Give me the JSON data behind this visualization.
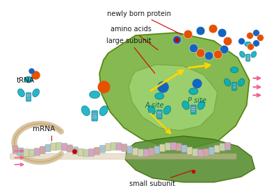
{
  "title": "",
  "background_color": "#ffffff",
  "labels": {
    "newly_born_protein": "newly born protein",
    "amino_acids": "amino acids",
    "large_subunit": "large subunit",
    "trna": "tRNA",
    "mrna": "mRNA",
    "small_subunit": "small subunit",
    "a_site": "A site",
    "p_site": "P site"
  },
  "colors": {
    "large_subunit_green": "#7cb342",
    "small_subunit_green": "#558b2f",
    "teal_blue": "#00acc1",
    "light_blue": "#80deea",
    "orange_ball": "#e65100",
    "blue_ball": "#1565c0",
    "yellow_arrow": "#ffd600",
    "mrna_tan": "#d7c4a0",
    "red_arrow": "#e53935",
    "pink_arrow": "#f48fb1",
    "label_color": "#1a1a1a",
    "red_dot": "#cc0000",
    "teal_label": "#00695c"
  },
  "figsize": [
    3.84,
    2.71
  ],
  "dpi": 100
}
